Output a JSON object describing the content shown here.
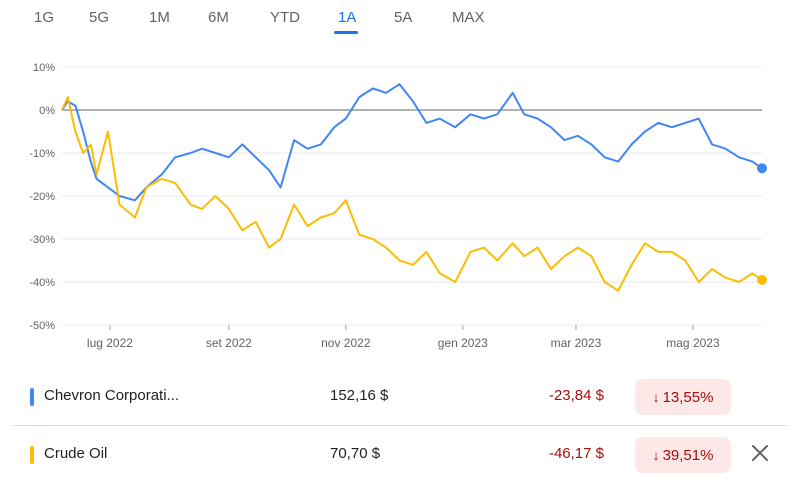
{
  "tabs": [
    {
      "label": "1G",
      "active": false
    },
    {
      "label": "5G",
      "active": false
    },
    {
      "label": "1M",
      "active": false
    },
    {
      "label": "6M",
      "active": false
    },
    {
      "label": "YTD",
      "active": false
    },
    {
      "label": "1A",
      "active": true
    },
    {
      "label": "5A",
      "active": false
    },
    {
      "label": "MAX",
      "active": false
    }
  ],
  "colors": {
    "accent": "#1a73e8",
    "chevron": "#4285f4",
    "crude": "#fbbc04",
    "negative": "#a50e0e",
    "negative_bg": "#fce8e6"
  },
  "chart_data": {
    "type": "line",
    "title": "",
    "xlabel": "",
    "ylabel": "",
    "x_tick_labels": [
      "lug 2022",
      "set 2022",
      "nov 2022",
      "gen 2023",
      "mar 2023",
      "mag 2023"
    ],
    "x_tick_dates": [
      "2022-07-01",
      "2022-09-01",
      "2022-11-01",
      "2023-01-01",
      "2023-03-01",
      "2023-05-01"
    ],
    "y_tick_labels": [
      "10%",
      "0%",
      "-10%",
      "-20%",
      "-30%",
      "-40%",
      "-50%"
    ],
    "y_tick_values": [
      10,
      0,
      -10,
      -20,
      -30,
      -40,
      -50
    ],
    "ylim": [
      -50,
      10
    ],
    "xlim": [
      "2022-06-06",
      "2023-06-06"
    ],
    "zero_line": true,
    "grid": "horizontal",
    "series": [
      {
        "name": "Chevron Corporation",
        "color": "#4285f4",
        "dates": [
          "2022-06-06",
          "2022-06-09",
          "2022-06-13",
          "2022-06-17",
          "2022-06-21",
          "2022-06-24",
          "2022-06-30",
          "2022-07-06",
          "2022-07-14",
          "2022-07-20",
          "2022-07-28",
          "2022-08-04",
          "2022-08-12",
          "2022-08-18",
          "2022-08-25",
          "2022-09-01",
          "2022-09-08",
          "2022-09-15",
          "2022-09-22",
          "2022-09-28",
          "2022-10-05",
          "2022-10-12",
          "2022-10-19",
          "2022-10-26",
          "2022-11-01",
          "2022-11-08",
          "2022-11-15",
          "2022-11-22",
          "2022-11-29",
          "2022-12-06",
          "2022-12-13",
          "2022-12-20",
          "2022-12-28",
          "2023-01-05",
          "2023-01-12",
          "2023-01-19",
          "2023-01-27",
          "2023-02-02",
          "2023-02-09",
          "2023-02-16",
          "2023-02-23",
          "2023-03-02",
          "2023-03-09",
          "2023-03-16",
          "2023-03-23",
          "2023-03-30",
          "2023-04-06",
          "2023-04-13",
          "2023-04-20",
          "2023-04-27",
          "2023-05-04",
          "2023-05-11",
          "2023-05-18",
          "2023-05-25",
          "2023-06-01",
          "2023-06-06"
        ],
        "values": [
          0,
          2,
          1,
          -5,
          -12,
          -16,
          -18,
          -20,
          -21,
          -18,
          -15,
          -11,
          -10,
          -9,
          -10,
          -11,
          -8,
          -11,
          -14,
          -18,
          -7,
          -9,
          -8,
          -4,
          -2,
          3,
          5,
          4,
          6,
          2,
          -3,
          -2,
          -4,
          -1,
          -2,
          -1,
          4,
          -1,
          -2,
          -4,
          -7,
          -6,
          -8,
          -11,
          -12,
          -8,
          -5,
          -3,
          -4,
          -3,
          -2,
          -8,
          -9,
          -11,
          -12,
          -13.55
        ]
      },
      {
        "name": "Crude Oil",
        "color": "#fbbc04",
        "dates": [
          "2022-06-06",
          "2022-06-09",
          "2022-06-13",
          "2022-06-17",
          "2022-06-21",
          "2022-06-24",
          "2022-06-30",
          "2022-07-06",
          "2022-07-14",
          "2022-07-20",
          "2022-07-28",
          "2022-08-04",
          "2022-08-12",
          "2022-08-18",
          "2022-08-25",
          "2022-09-01",
          "2022-09-08",
          "2022-09-15",
          "2022-09-22",
          "2022-09-28",
          "2022-10-05",
          "2022-10-12",
          "2022-10-19",
          "2022-10-26",
          "2022-11-01",
          "2022-11-08",
          "2022-11-15",
          "2022-11-22",
          "2022-11-29",
          "2022-12-06",
          "2022-12-13",
          "2022-12-20",
          "2022-12-28",
          "2023-01-05",
          "2023-01-12",
          "2023-01-19",
          "2023-01-27",
          "2023-02-02",
          "2023-02-09",
          "2023-02-16",
          "2023-02-23",
          "2023-03-02",
          "2023-03-09",
          "2023-03-16",
          "2023-03-23",
          "2023-03-30",
          "2023-04-06",
          "2023-04-13",
          "2023-04-20",
          "2023-04-27",
          "2023-05-04",
          "2023-05-11",
          "2023-05-18",
          "2023-05-25",
          "2023-06-01",
          "2023-06-06"
        ],
        "values": [
          0,
          3,
          -5,
          -10,
          -8,
          -15,
          -5,
          -22,
          -25,
          -18,
          -16,
          -17,
          -22,
          -23,
          -20,
          -23,
          -28,
          -26,
          -32,
          -30,
          -22,
          -27,
          -25,
          -24,
          -21,
          -29,
          -30,
          -32,
          -35,
          -36,
          -33,
          -38,
          -40,
          -33,
          -32,
          -35,
          -31,
          -34,
          -32,
          -37,
          -34,
          -32,
          -34,
          -40,
          -42,
          -36,
          -31,
          -33,
          -33,
          -35,
          -40,
          -37,
          -39,
          -40,
          -38,
          -39.51
        ]
      }
    ]
  },
  "rows": [
    {
      "name": "Chevron Corporati...",
      "price": "152,16 $",
      "change": "-23,84 $",
      "percent": "13,55%",
      "arrow": "↓",
      "closable": false
    },
    {
      "name": "Crude Oil",
      "price": "70,70 $",
      "change": "-46,17 $",
      "percent": "39,51%",
      "arrow": "↓",
      "closable": true
    }
  ],
  "icons": {
    "close": "close-icon",
    "arrow_down": "arrow-down-icon"
  }
}
